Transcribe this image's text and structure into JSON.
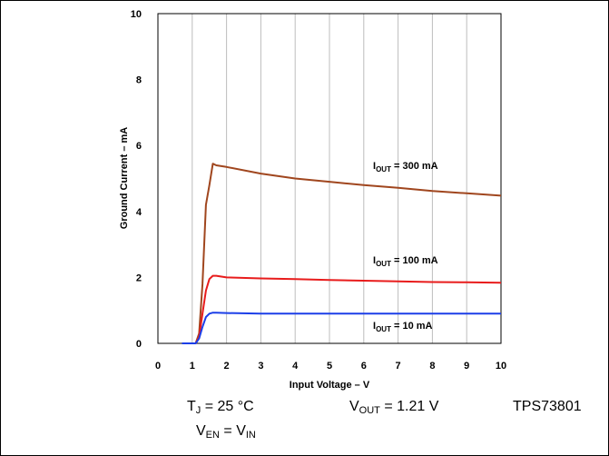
{
  "chart_data": {
    "type": "line",
    "xlabel": "Input Voltage – V",
    "ylabel": "Ground Current – mA",
    "xlim": [
      0,
      10
    ],
    "ylim": [
      0,
      10
    ],
    "x_ticks": [
      "0",
      "1",
      "2",
      "3",
      "4",
      "5",
      "6",
      "7",
      "8",
      "9",
      "10"
    ],
    "y_ticks": [
      "0",
      "2",
      "4",
      "6",
      "8",
      "10"
    ],
    "grid": "vertical",
    "series": [
      {
        "label_main": "I",
        "label_sub": "OUT",
        "label_rest": " = 300 mA",
        "color": "#a0461e",
        "x": [
          0.7,
          1.1,
          1.2,
          1.3,
          1.4,
          1.5,
          1.6,
          1.7,
          2.0,
          3.0,
          4.0,
          5.0,
          6.0,
          7.0,
          8.0,
          9.0,
          10.0
        ],
        "y": [
          0.0,
          0.0,
          0.3,
          1.8,
          4.2,
          4.8,
          5.45,
          5.4,
          5.35,
          5.15,
          5.0,
          4.9,
          4.8,
          4.72,
          4.62,
          4.55,
          4.48
        ]
      },
      {
        "label_main": "I",
        "label_sub": "OUT",
        "label_rest": " = 100 mA",
        "color": "#e81c1c",
        "x": [
          0.7,
          1.1,
          1.2,
          1.3,
          1.4,
          1.5,
          1.6,
          1.7,
          2.0,
          3.0,
          4.0,
          5.0,
          6.0,
          7.0,
          8.0,
          9.0,
          10.0
        ],
        "y": [
          0.0,
          0.0,
          0.2,
          0.9,
          1.6,
          1.95,
          2.05,
          2.05,
          2.0,
          1.97,
          1.95,
          1.92,
          1.9,
          1.88,
          1.86,
          1.85,
          1.84
        ]
      },
      {
        "label_main": "I",
        "label_sub": "OUT",
        "label_rest": " = 10 mA",
        "color": "#1c3fe8",
        "x": [
          0.7,
          1.1,
          1.2,
          1.3,
          1.4,
          1.5,
          1.6,
          1.7,
          2.0,
          3.0,
          4.0,
          5.0,
          6.0,
          7.0,
          8.0,
          9.0,
          10.0
        ],
        "y": [
          0.0,
          0.0,
          0.15,
          0.5,
          0.8,
          0.9,
          0.93,
          0.93,
          0.92,
          0.9,
          0.9,
          0.9,
          0.9,
          0.9,
          0.9,
          0.9,
          0.9
        ]
      }
    ]
  },
  "conditions": {
    "tj_main": "T",
    "tj_sub": "J",
    "tj_rest": " = 25 °C",
    "vout_main": "V",
    "vout_sub": "OUT",
    "vout_rest": " = 1.21 V",
    "part": "TPS73801",
    "ven_main": "V",
    "ven_sub": "EN",
    "ven_mid": " = V",
    "ven_sub2": "IN"
  }
}
